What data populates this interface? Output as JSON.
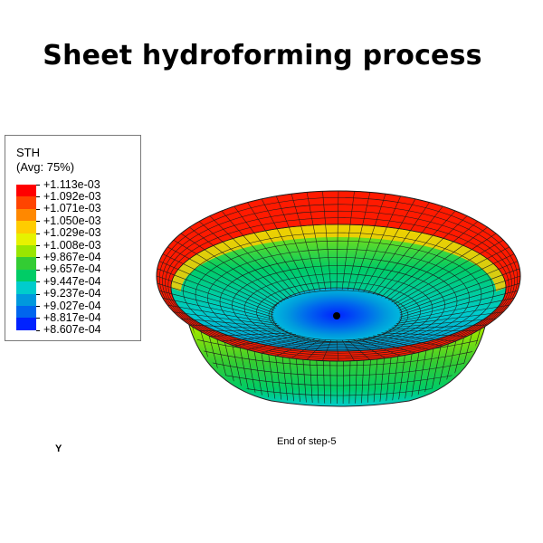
{
  "title": "Sheet hydroforming process",
  "legend": {
    "variable": "STH",
    "averaging": "(Avg: 75%)",
    "levels": [
      "+1.113e-03",
      "+1.092e-03",
      "+1.071e-03",
      "+1.050e-03",
      "+1.029e-03",
      "+1.008e-03",
      "+9.867e-04",
      "+9.657e-04",
      "+9.447e-04",
      "+9.237e-04",
      "+9.027e-04",
      "+8.817e-04",
      "+8.607e-04"
    ],
    "colors": [
      "#ff0000",
      "#ff4400",
      "#ff8800",
      "#ffcc00",
      "#e6f200",
      "#99e600",
      "#33cc33",
      "#00cc66",
      "#00cccc",
      "#0099dd",
      "#0066ee",
      "#0022ff"
    ]
  },
  "caption": "End of step-5",
  "triad_label": "Y"
}
